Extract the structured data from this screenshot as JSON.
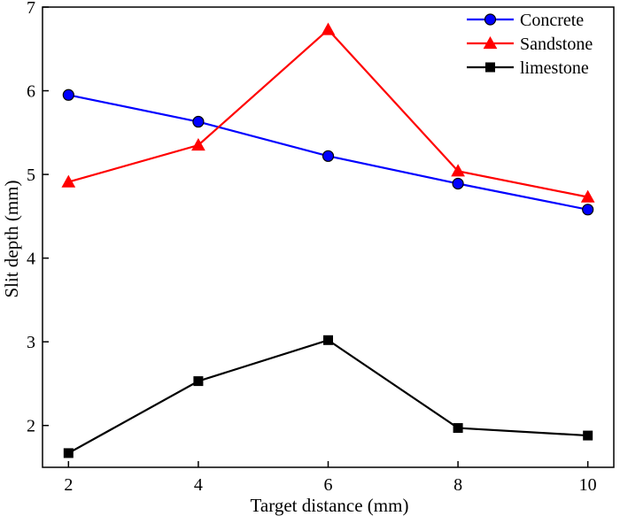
{
  "chart_data": {
    "type": "line",
    "title": "",
    "xlabel": "Target distance (mm)",
    "ylabel": "Slit depth (mm)",
    "x": [
      2,
      4,
      6,
      8,
      10
    ],
    "xlim": [
      1.6,
      10.4
    ],
    "ylim": [
      1.5,
      7
    ],
    "xticks": [
      2,
      4,
      6,
      8,
      10
    ],
    "yticks": [
      2,
      3,
      4,
      5,
      6,
      7
    ],
    "grid": false,
    "legend_position": "top-right",
    "series": [
      {
        "name": "Concrete",
        "color": "#0000ff",
        "marker": "circle",
        "values": [
          5.95,
          5.63,
          5.22,
          4.89,
          4.58
        ]
      },
      {
        "name": "Sandstone",
        "color": "#ff0000",
        "marker": "triangle",
        "values": [
          4.91,
          5.35,
          6.73,
          5.04,
          4.73
        ]
      },
      {
        "name": "limestone",
        "color": "#000000",
        "marker": "square",
        "values": [
          1.67,
          2.53,
          3.02,
          1.97,
          1.88
        ]
      }
    ]
  }
}
